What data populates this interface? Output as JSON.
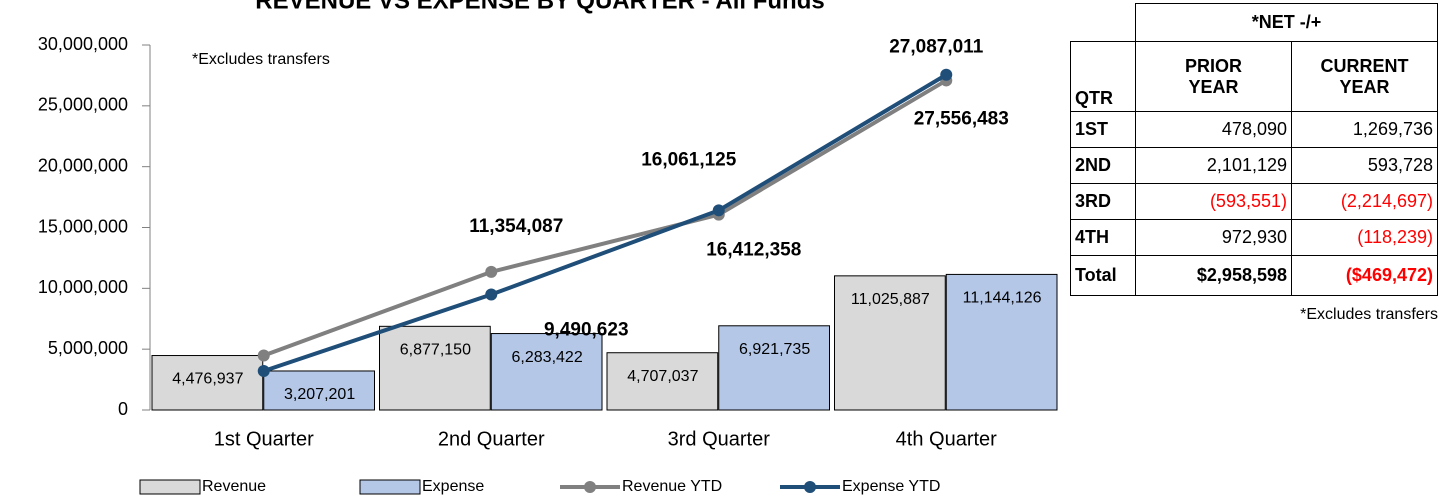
{
  "chart_data": {
    "type": "bar",
    "title": "REVENUE VS EXPENSE BY QUARTER - All Funds",
    "annotation": "*Excludes transfers",
    "categories": [
      "1st Quarter",
      "2nd Quarter",
      "3rd Quarter",
      "4th Quarter"
    ],
    "series": [
      {
        "name": "Revenue",
        "type": "bar",
        "color": "#d9d9d9",
        "values": [
          4476937,
          6877150,
          4707037,
          11025887
        ],
        "value_labels": [
          "4,476,937",
          "6,877,150",
          "4,707,037",
          "11,025,887"
        ]
      },
      {
        "name": "Expense",
        "type": "bar",
        "color": "#b4c7e7",
        "values": [
          3207201,
          6283422,
          6921735,
          11144126
        ],
        "value_labels": [
          "3,207,201",
          "6,283,422",
          "6,921,735",
          "11,144,126"
        ]
      },
      {
        "name": "Revenue YTD",
        "type": "line",
        "color": "#808080",
        "values": [
          4476937,
          11354087,
          16061125,
          27087011
        ],
        "value_labels": [
          null,
          "11,354,087",
          "16,061,125",
          "27,087,011"
        ]
      },
      {
        "name": "Expense YTD",
        "type": "line",
        "color": "#1f4e79",
        "values": [
          3207201,
          9490623,
          16412358,
          27556483
        ],
        "value_labels": [
          null,
          "9,490,623",
          "16,412,358",
          "27,556,483"
        ]
      }
    ],
    "ylim": [
      0,
      30000000
    ],
    "yticks": [
      0,
      {
        "value": 5000000,
        "label": "5,000,000"
      },
      {
        "value": 10000000,
        "label": "10,000,000"
      },
      {
        "value": 15000000,
        "label": "15,000,000"
      },
      {
        "value": 20000000,
        "label": "20,000,000"
      },
      {
        "value": 25000000,
        "label": "25,000,000"
      },
      {
        "value": 30000000,
        "label": "30,000,000"
      }
    ],
    "legend": "bottom"
  },
  "table": {
    "header": "*NET -/+",
    "negative_color": "#ff0000",
    "columns": [
      "QTR",
      "PRIOR YEAR",
      "CURRENT YEAR"
    ],
    "rows": [
      [
        "1ST",
        "478,090",
        "1,269,736"
      ],
      [
        "2ND",
        "2,101,129",
        "593,728"
      ],
      [
        "3RD",
        "(593,551)",
        "(2,214,697)"
      ],
      [
        "4TH",
        "972,930",
        "(118,239)"
      ],
      [
        "Total",
        "$2,958,598",
        "($469,472)"
      ]
    ],
    "note": "*Excludes transfers"
  }
}
